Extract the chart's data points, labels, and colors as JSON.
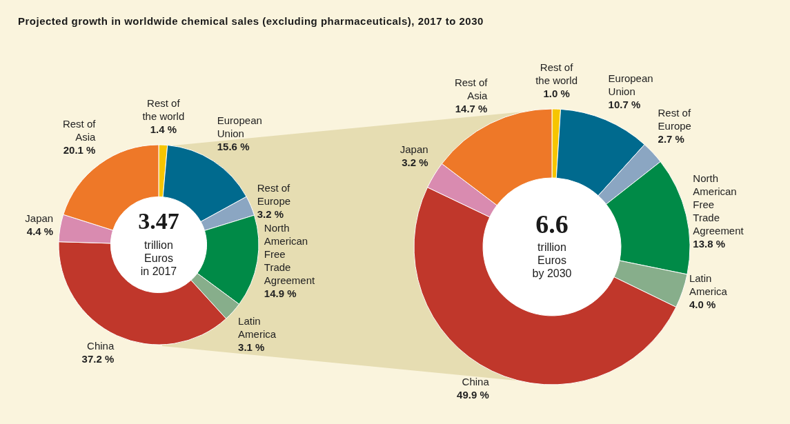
{
  "chart_data": [
    {
      "type": "donut",
      "title": "Projected growth in worldwide chemical sales (excluding pharmaceuticals), 2017 to 2030",
      "categories": [
        "Rest of the world",
        "European Union",
        "Rest of Europe",
        "North American Free Trade Agreement",
        "Latin America",
        "China",
        "Japan",
        "Rest of Asia"
      ],
      "values": [
        1.4,
        15.6,
        3.2,
        14.9,
        3.1,
        37.2,
        4.4,
        20.1
      ],
      "colors": [
        "#f6c500",
        "#006a8e",
        "#8ba6c2",
        "#008a47",
        "#87ae8b",
        "#c0372b",
        "#d98bb0",
        "#ee7828"
      ],
      "value_labels": [
        "1.4 %",
        "15.6 %",
        "3.2 %",
        "14.9 %",
        "3.1 %",
        "37.2 %",
        "4.4 %",
        "20.1 %"
      ],
      "annotations": [
        "3.47",
        "trillion",
        "Euros",
        "in 2017"
      ]
    },
    {
      "type": "donut",
      "categories": [
        "Rest of the world",
        "European Union",
        "Rest of Europe",
        "North American Free Trade Agreement",
        "Latin America",
        "China",
        "Japan",
        "Rest of Asia"
      ],
      "values": [
        1.0,
        10.7,
        2.7,
        13.8,
        4.0,
        49.9,
        3.2,
        14.7
      ],
      "colors": [
        "#f6c500",
        "#006a8e",
        "#8ba6c2",
        "#008a47",
        "#87ae8b",
        "#c0372b",
        "#d98bb0",
        "#ee7828"
      ],
      "value_labels": [
        "1.0 %",
        "10.7 %",
        "2.7 %",
        "13.8 %",
        "4.0 %",
        "49.9 %",
        "3.2 %",
        "14.7 %"
      ],
      "annotations": [
        "6.6",
        "trillion",
        "Euros",
        "by 2030"
      ]
    }
  ]
}
